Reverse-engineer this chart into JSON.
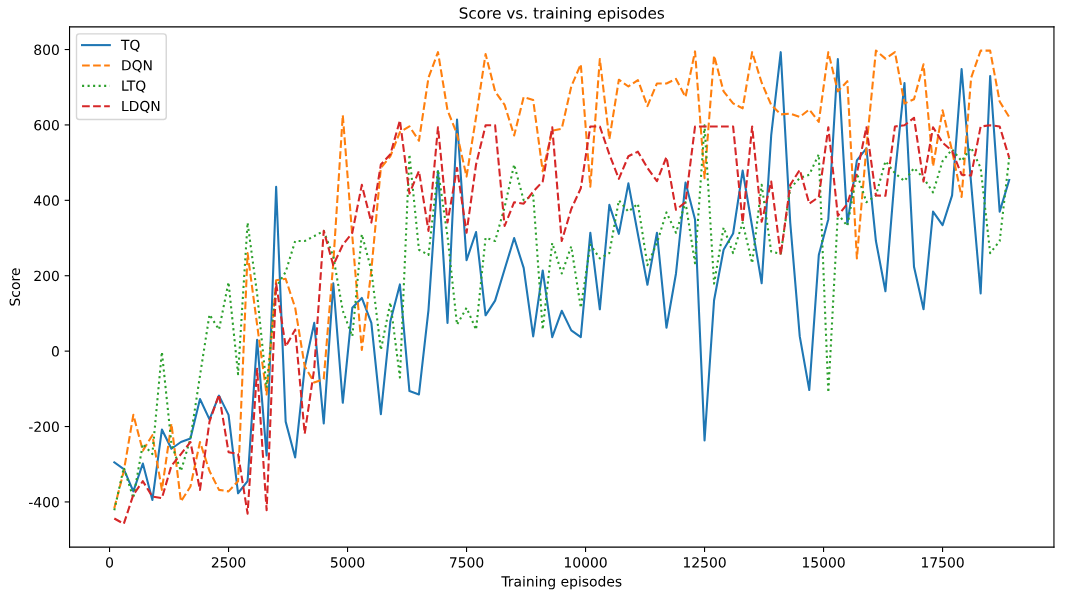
{
  "chart_data": {
    "type": "line",
    "title": "Score vs. training episodes",
    "xlabel": "Training episodes",
    "ylabel": "Score",
    "x": [
      100,
      300,
      500,
      700,
      900,
      1100,
      1300,
      1500,
      1700,
      1900,
      2100,
      2300,
      2500,
      2700,
      2900,
      3100,
      3300,
      3500,
      3700,
      3900,
      4100,
      4300,
      4500,
      4700,
      4900,
      5100,
      5300,
      5500,
      5700,
      5900,
      6100,
      6300,
      6500,
      6700,
      6900,
      7100,
      7300,
      7500,
      7700,
      7900,
      8100,
      8300,
      8500,
      8700,
      8900,
      9100,
      9300,
      9500,
      9700,
      9900,
      10100,
      10300,
      10500,
      10700,
      10900,
      11100,
      11300,
      11500,
      11700,
      11900,
      12100,
      12300,
      12500,
      12700,
      12900,
      13100,
      13300,
      13500,
      13700,
      13900,
      14100,
      14300,
      14500,
      14700,
      14900,
      15100,
      15300,
      15500,
      15700,
      15900,
      16100,
      16300,
      16500,
      16700,
      16900,
      17100,
      17300,
      17500,
      17700,
      17900,
      18100,
      18300,
      18500,
      18700,
      18900
    ],
    "series": [
      {
        "name": "TQ",
        "color": "#1f77b4",
        "line_style": "solid",
        "values": [
          -295,
          -313,
          -372,
          -298,
          -395,
          -208,
          -259,
          -241,
          -232,
          -127,
          -181,
          -118,
          -169,
          -377,
          -345,
          30,
          -277,
          436,
          -187,
          -282,
          -43,
          75,
          -192,
          180,
          -137,
          115,
          141,
          75,
          -167,
          79,
          177,
          -106,
          -115,
          109,
          478,
          75,
          614,
          241,
          316,
          95,
          134,
          217,
          300,
          221,
          39,
          214,
          37,
          107,
          55,
          37,
          314,
          111,
          388,
          311,
          445,
          310,
          176,
          314,
          62,
          206,
          447,
          349,
          -237,
          135,
          269,
          312,
          479,
          330,
          180,
          572,
          793,
          341,
          39,
          -103,
          255,
          350,
          775,
          337,
          506,
          538,
          292,
          159,
          469,
          711,
          224,
          111,
          370,
          334,
          413,
          748,
          445,
          153,
          730,
          370,
          454
        ]
      },
      {
        "name": "DQN",
        "color": "#ff7f0e",
        "line_style": "dashed",
        "values": [
          -417,
          -318,
          -169,
          -264,
          -223,
          -368,
          -192,
          -399,
          -359,
          -241,
          -318,
          -368,
          -372,
          -345,
          260,
          70,
          -115,
          188,
          192,
          115,
          -40,
          -83,
          -74,
          233,
          626,
          305,
          3,
          215,
          486,
          517,
          581,
          596,
          558,
          725,
          793,
          639,
          576,
          463,
          621,
          788,
          689,
          653,
          572,
          674,
          666,
          477,
          585,
          590,
          702,
          761,
          436,
          775,
          562,
          720,
          702,
          719,
          650,
          710,
          710,
          722,
          674,
          795,
          459,
          784,
          689,
          657,
          644,
          793,
          712,
          653,
          628,
          630,
          621,
          641,
          608,
          793,
          689,
          716,
          246,
          540,
          797,
          776,
          793,
          657,
          668,
          761,
          490,
          639,
          531,
          409,
          725,
          797,
          797,
          662,
          621
        ]
      },
      {
        "name": "LTQ",
        "color": "#2ca02c",
        "line_style": "dotted",
        "values": [
          -422,
          -309,
          -390,
          -246,
          -273,
          -2,
          -246,
          -318,
          -232,
          -65,
          97,
          57,
          183,
          -61,
          341,
          152,
          -97,
          170,
          210,
          292,
          292,
          305,
          319,
          251,
          107,
          39,
          310,
          215,
          3,
          129,
          -70,
          522,
          269,
          255,
          481,
          305,
          70,
          115,
          57,
          301,
          292,
          382,
          495,
          400,
          413,
          57,
          287,
          206,
          278,
          115,
          282,
          246,
          260,
          400,
          370,
          391,
          228,
          287,
          368,
          314,
          395,
          233,
          599,
          179,
          328,
          260,
          341,
          233,
          441,
          264,
          258,
          432,
          459,
          468,
          522,
          -110,
          364,
          332,
          472,
          395,
          413,
          504,
          472,
          451,
          486,
          459,
          421,
          504,
          535,
          504,
          540,
          486,
          260,
          292,
          513
        ]
      },
      {
        "name": "LDQN",
        "color": "#d62728",
        "line_style": "dashed",
        "values": [
          -444,
          -458,
          -381,
          -345,
          -386,
          -390,
          -304,
          -273,
          -241,
          -368,
          -187,
          -115,
          -268,
          -273,
          -431,
          -47,
          -422,
          179,
          12,
          57,
          -219,
          -47,
          319,
          228,
          282,
          314,
          441,
          341,
          495,
          522,
          612,
          418,
          478,
          319,
          594,
          341,
          486,
          314,
          495,
          599,
          599,
          332,
          395,
          391,
          423,
          450,
          594,
          292,
          377,
          432,
          596,
          596,
          522,
          457,
          517,
          529,
          486,
          451,
          515,
          375,
          395,
          596,
          596,
          596,
          596,
          596,
          341,
          596,
          343,
          450,
          255,
          441,
          481,
          391,
          409,
          594,
          359,
          391,
          472,
          594,
          413,
          412,
          596,
          599,
          619,
          450,
          594,
          553,
          531,
          468,
          466,
          596,
          599,
          596,
          513
        ]
      }
    ],
    "xlim": [
      -840,
      19840
    ],
    "ylim": [
      -520,
      860
    ],
    "xticks": [
      0,
      2500,
      5000,
      7500,
      10000,
      12500,
      15000,
      17500
    ],
    "yticks": [
      -400,
      -200,
      0,
      200,
      400,
      600,
      800
    ],
    "legend": "top left"
  }
}
